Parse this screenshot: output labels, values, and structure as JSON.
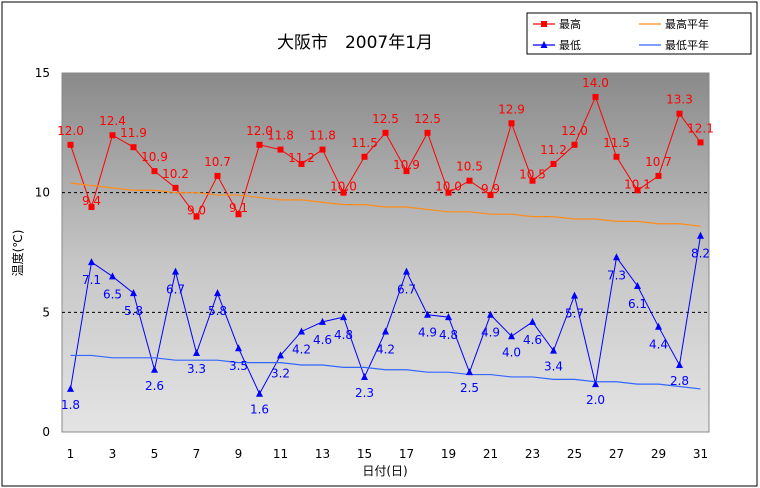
{
  "chart_data": {
    "type": "line",
    "title": "大阪市　2007年1月",
    "xlabel": "日付(日)",
    "ylabel": "温度(℃)",
    "ylim": [
      0,
      15
    ],
    "xlim": [
      1,
      31
    ],
    "yticks": [
      "0",
      "5",
      "10",
      "15"
    ],
    "xticks": [
      "1",
      "3",
      "5",
      "7",
      "9",
      "11",
      "13",
      "15",
      "17",
      "19",
      "21",
      "23",
      "25",
      "27",
      "29",
      "31"
    ],
    "grid": "dotted at 5 and 10",
    "legend_position": "top-right",
    "x": [
      1,
      2,
      3,
      4,
      5,
      6,
      7,
      8,
      9,
      10,
      11,
      12,
      13,
      14,
      15,
      16,
      17,
      18,
      19,
      20,
      21,
      22,
      23,
      24,
      25,
      26,
      27,
      28,
      29,
      30,
      31
    ],
    "series": [
      {
        "name": "最高",
        "color": "#ff0000",
        "marker": "square",
        "values": [
          12.0,
          9.4,
          12.4,
          11.9,
          10.9,
          10.2,
          9.0,
          10.7,
          9.1,
          12.0,
          11.8,
          11.2,
          11.8,
          10.0,
          11.5,
          12.5,
          10.9,
          12.5,
          10.0,
          10.5,
          9.9,
          12.9,
          10.5,
          11.2,
          12.0,
          14.0,
          11.5,
          10.1,
          10.7,
          13.3,
          12.1
        ],
        "labels": [
          "12.0",
          "9.4",
          "12.4",
          "11.9",
          "10.9",
          "10.2",
          "9.0",
          "10.7",
          "9.1",
          "12.0",
          "11.8",
          "11.2",
          "11.8",
          "10.0",
          "11.5",
          "12.5",
          "10.9",
          "12.5",
          "10.0",
          "10.5",
          "9.9",
          "12.9",
          "10.5",
          "11.2",
          "12.0",
          "14.0",
          "11.5",
          "10.1",
          "10.7",
          "13.3",
          "12.1"
        ]
      },
      {
        "name": "最高平年",
        "color": "#ff8c1a",
        "marker": "none",
        "values": [
          10.4,
          10.3,
          10.2,
          10.1,
          10.1,
          10.0,
          10.0,
          9.9,
          9.9,
          9.8,
          9.7,
          9.7,
          9.6,
          9.5,
          9.5,
          9.4,
          9.4,
          9.3,
          9.2,
          9.2,
          9.1,
          9.1,
          9.0,
          9.0,
          8.9,
          8.9,
          8.8,
          8.8,
          8.7,
          8.7,
          8.6
        ]
      },
      {
        "name": "最低",
        "color": "#0000ff",
        "marker": "triangle",
        "values": [
          1.8,
          7.1,
          6.5,
          5.8,
          2.6,
          6.7,
          3.3,
          5.8,
          3.5,
          1.6,
          3.2,
          4.2,
          4.6,
          4.8,
          2.3,
          4.2,
          6.7,
          4.9,
          4.8,
          2.5,
          4.9,
          4.0,
          4.6,
          3.4,
          5.7,
          2.0,
          7.3,
          6.1,
          4.4,
          2.8,
          8.2
        ],
        "labels": [
          "1.8",
          "7.1",
          "6.5",
          "5.8",
          "2.6",
          "6.7",
          "3.3",
          "5.8",
          "3.5",
          "1.6",
          "3.2",
          "4.2",
          "4.6",
          "4.8",
          "2.3",
          "4.2",
          "6.7",
          "4.9",
          "4.8",
          "2.5",
          "4.9",
          "4.0",
          "4.6",
          "3.4",
          "5.7",
          "2.0",
          "7.3",
          "6.1",
          "4.4",
          "2.8",
          "8.2"
        ]
      },
      {
        "name": "最低平年",
        "color": "#3366ff",
        "marker": "none",
        "values": [
          3.2,
          3.2,
          3.1,
          3.1,
          3.1,
          3.0,
          3.0,
          3.0,
          2.9,
          2.9,
          2.9,
          2.8,
          2.8,
          2.7,
          2.7,
          2.6,
          2.6,
          2.5,
          2.5,
          2.4,
          2.4,
          2.3,
          2.3,
          2.2,
          2.2,
          2.1,
          2.1,
          2.0,
          2.0,
          1.9,
          1.8
        ]
      }
    ]
  }
}
